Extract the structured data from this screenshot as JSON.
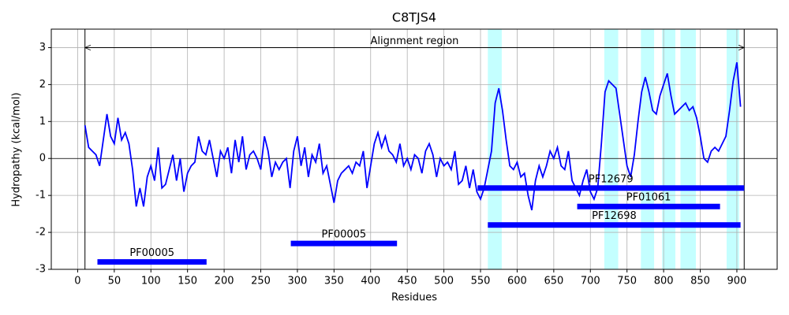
{
  "chart_data": {
    "type": "line",
    "title": "C8TJS4",
    "xlabel": "Residues",
    "ylabel": "Hydropathy (kcal/mol)",
    "color": "#0000ff",
    "grid": true,
    "xlim": [
      -36,
      955
    ],
    "ylim": [
      -3,
      3.5
    ],
    "xticks": [
      0,
      50,
      100,
      150,
      200,
      250,
      300,
      350,
      400,
      450,
      500,
      550,
      600,
      650,
      700,
      750,
      800,
      850,
      900
    ],
    "yticks": [
      -3,
      -2,
      -1,
      0,
      1,
      2,
      3
    ],
    "x": [
      10,
      15,
      20,
      25,
      30,
      35,
      40,
      45,
      50,
      55,
      60,
      65,
      70,
      75,
      80,
      85,
      90,
      95,
      100,
      105,
      110,
      115,
      120,
      125,
      130,
      135,
      140,
      145,
      150,
      155,
      160,
      165,
      170,
      175,
      180,
      185,
      190,
      195,
      200,
      205,
      210,
      215,
      220,
      225,
      230,
      235,
      240,
      245,
      250,
      255,
      260,
      265,
      270,
      275,
      280,
      285,
      290,
      295,
      300,
      305,
      310,
      315,
      320,
      325,
      330,
      335,
      340,
      345,
      350,
      355,
      360,
      365,
      370,
      375,
      380,
      385,
      390,
      395,
      400,
      405,
      410,
      415,
      420,
      425,
      430,
      435,
      440,
      445,
      450,
      455,
      460,
      465,
      470,
      475,
      480,
      485,
      490,
      495,
      500,
      505,
      510,
      515,
      520,
      525,
      530,
      535,
      540,
      545,
      550,
      555,
      560,
      565,
      570,
      575,
      580,
      585,
      590,
      595,
      600,
      605,
      610,
      615,
      620,
      625,
      630,
      635,
      640,
      645,
      650,
      655,
      660,
      665,
      670,
      675,
      680,
      685,
      690,
      695,
      700,
      705,
      710,
      715,
      720,
      725,
      730,
      735,
      740,
      745,
      750,
      755,
      760,
      765,
      770,
      775,
      780,
      785,
      790,
      795,
      800,
      805,
      810,
      815,
      820,
      825,
      830,
      835,
      840,
      845,
      850,
      855,
      860,
      865,
      870,
      875,
      880,
      885,
      890,
      895,
      900,
      905
    ],
    "values": [
      0.9,
      0.3,
      0.2,
      0.1,
      -0.2,
      0.5,
      1.2,
      0.6,
      0.4,
      1.1,
      0.5,
      0.7,
      0.4,
      -0.3,
      -1.3,
      -0.8,
      -1.3,
      -0.5,
      -0.2,
      -0.6,
      0.3,
      -0.8,
      -0.7,
      -0.3,
      0.1,
      -0.6,
      0.0,
      -0.9,
      -0.4,
      -0.2,
      -0.1,
      0.6,
      0.2,
      0.1,
      0.5,
      0.0,
      -0.5,
      0.2,
      0.0,
      0.3,
      -0.4,
      0.5,
      -0.1,
      0.6,
      -0.3,
      0.1,
      0.2,
      0.0,
      -0.3,
      0.6,
      0.2,
      -0.5,
      -0.1,
      -0.3,
      -0.1,
      0.0,
      -0.8,
      0.2,
      0.6,
      -0.2,
      0.3,
      -0.5,
      0.1,
      -0.1,
      0.4,
      -0.4,
      -0.2,
      -0.7,
      -1.2,
      -0.6,
      -0.4,
      -0.3,
      -0.2,
      -0.4,
      -0.1,
      -0.2,
      0.2,
      -0.8,
      -0.2,
      0.4,
      0.7,
      0.3,
      0.6,
      0.2,
      0.1,
      -0.1,
      0.4,
      -0.2,
      0.0,
      -0.3,
      0.1,
      0.0,
      -0.4,
      0.2,
      0.4,
      0.1,
      -0.5,
      0.0,
      -0.2,
      -0.1,
      -0.3,
      0.2,
      -0.7,
      -0.6,
      -0.2,
      -0.8,
      -0.3,
      -0.9,
      -1.1,
      -0.8,
      -0.3,
      0.2,
      1.5,
      1.9,
      1.3,
      0.5,
      -0.2,
      -0.3,
      -0.1,
      -0.5,
      -0.4,
      -1.0,
      -1.4,
      -0.6,
      -0.2,
      -0.5,
      -0.2,
      0.2,
      0.0,
      0.3,
      -0.2,
      -0.3,
      0.2,
      -0.6,
      -0.8,
      -1.0,
      -0.6,
      -0.3,
      -0.9,
      -1.1,
      -0.8,
      0.4,
      1.8,
      2.1,
      2.0,
      1.9,
      1.2,
      0.5,
      -0.2,
      -0.5,
      0.1,
      1.0,
      1.8,
      2.2,
      1.8,
      1.3,
      1.2,
      1.7,
      2.0,
      2.3,
      1.7,
      1.2,
      1.3,
      1.4,
      1.5,
      1.3,
      1.4,
      1.1,
      0.6,
      0.0,
      -0.1,
      0.2,
      0.3,
      0.2,
      0.4,
      0.6,
      1.3,
      2.1,
      2.6,
      1.4
    ],
    "regions": [
      [
        560,
        579
      ],
      [
        719,
        738
      ],
      [
        769,
        787
      ],
      [
        798,
        816
      ],
      [
        823,
        844
      ],
      [
        886,
        903
      ]
    ],
    "region_color": "#c4ffff",
    "alignment": {
      "label": "Alignment region",
      "start": 10,
      "end": 910,
      "y": 3
    },
    "domains": [
      {
        "label": "PF00005",
        "start": 27,
        "end": 176,
        "y": -2.8
      },
      {
        "label": "PF00005",
        "start": 291,
        "end": 436,
        "y": -2.3
      },
      {
        "label": "PF12679",
        "start": 546,
        "end": 910,
        "y": -0.8
      },
      {
        "label": "PF01061",
        "start": 682,
        "end": 877,
        "y": -1.3
      },
      {
        "label": "PF12698",
        "start": 560,
        "end": 905,
        "y": -1.8
      }
    ],
    "domain_color": "#0000ff"
  }
}
